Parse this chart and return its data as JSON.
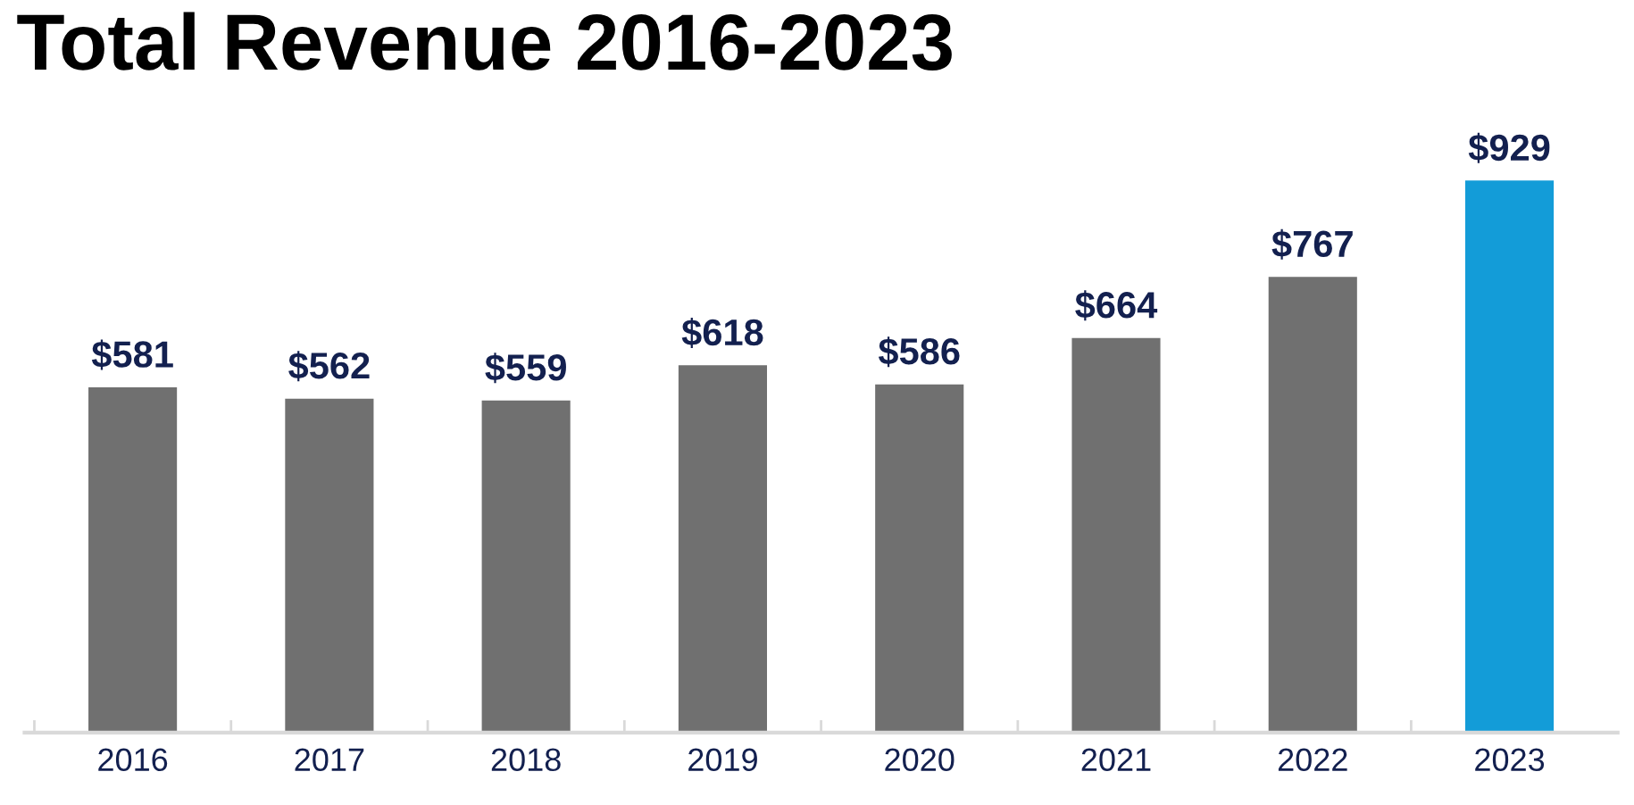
{
  "chart_data": {
    "type": "bar",
    "title": "Total Revenue 2016-2023",
    "categories": [
      "2016",
      "2017",
      "2018",
      "2019",
      "2020",
      "2021",
      "2022",
      "2023"
    ],
    "values": [
      581,
      562,
      559,
      618,
      586,
      664,
      767,
      929
    ],
    "colors": [
      "#707070",
      "#707070",
      "#707070",
      "#707070",
      "#707070",
      "#707070",
      "#707070",
      "#139cd8"
    ],
    "value_labels": [
      "$581",
      "$562",
      "$559",
      "$618",
      "$586",
      "$664",
      "$767",
      "$929"
    ],
    "grid": false,
    "legend": false,
    "tick_labels": "x"
  }
}
